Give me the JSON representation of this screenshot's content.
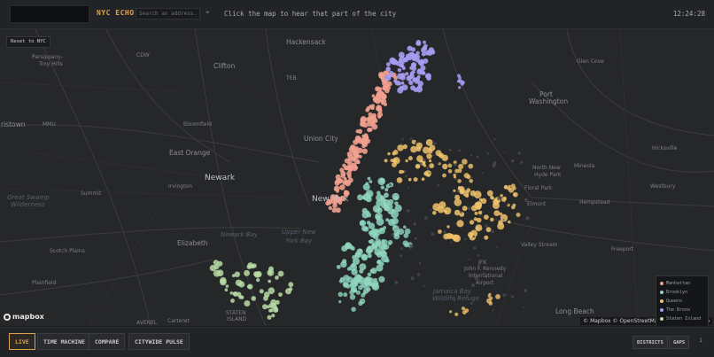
{
  "header": {
    "title": "NYC ECHO",
    "search_placeholder": "Search an address...",
    "search_icon": "arrow-right-icon",
    "search_symbol": "➔",
    "hint": "Click the map to hear that part of the city",
    "clock": "12:24:28"
  },
  "map": {
    "reset_label": "Reset to NYC",
    "places": [
      {
        "id": "hackensack",
        "name": "Hackensack",
        "size": "mid"
      },
      {
        "id": "cdw",
        "name": "CDW",
        "size": "small"
      },
      {
        "id": "parsippany",
        "name": "Parsippany-",
        "size": "small"
      },
      {
        "id": "troy-hills",
        "name": "Troy Hills",
        "size": "small"
      },
      {
        "id": "clifton",
        "name": "Clifton",
        "size": "mid"
      },
      {
        "id": "teb",
        "name": "TEB",
        "size": "small"
      },
      {
        "id": "mmu",
        "name": "MMU",
        "size": "small"
      },
      {
        "id": "bloomfield",
        "name": "Bloomfield",
        "size": "small"
      },
      {
        "id": "morristown",
        "name": "ristown",
        "size": "mid"
      },
      {
        "id": "union-city",
        "name": "Union City",
        "size": "mid"
      },
      {
        "id": "east-orange",
        "name": "East Orange",
        "size": "mid"
      },
      {
        "id": "summit",
        "name": "Summit",
        "size": "mid"
      },
      {
        "id": "irvington",
        "name": "Irvington",
        "size": "small"
      },
      {
        "id": "newark",
        "name": "Newark",
        "size": "big"
      },
      {
        "id": "great-swamp",
        "name": "Great Swamp",
        "size": "water"
      },
      {
        "id": "wilderness",
        "name": "Wilderness",
        "size": "water"
      },
      {
        "id": "new-york",
        "name": "New York",
        "size": "big"
      },
      {
        "id": "elizabeth",
        "name": "Elizabeth",
        "size": "mid"
      },
      {
        "id": "scotch-plains",
        "name": "Scotch Plains",
        "size": "small"
      },
      {
        "id": "plainfield",
        "name": "Plainfield",
        "size": "small"
      },
      {
        "id": "newark-bay",
        "name": "Newark Bay",
        "size": "water"
      },
      {
        "id": "upper-ny-bay",
        "name": "Upper New",
        "size": "water"
      },
      {
        "id": "york-bay",
        "name": "York Bay",
        "size": "water"
      },
      {
        "id": "staten",
        "name": "STATEN",
        "size": "small"
      },
      {
        "id": "island",
        "name": "ISLAND",
        "size": "small"
      },
      {
        "id": "carteret",
        "name": "Carteret",
        "size": "small"
      },
      {
        "id": "jamaica-bay",
        "name": "Jamaica Bay",
        "size": "water"
      },
      {
        "id": "wildlife-refuge",
        "name": "Wildlife Refuge",
        "size": "water"
      },
      {
        "id": "jfk",
        "name": "JFK",
        "size": "small"
      },
      {
        "id": "jfk-full",
        "name": "John F. Kennedy",
        "size": "small"
      },
      {
        "id": "jfk-intl",
        "name": "International",
        "size": "small"
      },
      {
        "id": "jfk-airport",
        "name": "Airport",
        "size": "small"
      },
      {
        "id": "glen-cove",
        "name": "Glen Cove",
        "size": "small"
      },
      {
        "id": "port",
        "name": "Port",
        "size": "mid"
      },
      {
        "id": "washington",
        "name": "Washington",
        "size": "mid"
      },
      {
        "id": "north-new",
        "name": "North New",
        "size": "small"
      },
      {
        "id": "hyde-park",
        "name": "Hyde Park",
        "size": "small"
      },
      {
        "id": "mineola",
        "name": "Mineola",
        "size": "small"
      },
      {
        "id": "floral-park",
        "name": "Floral Park",
        "size": "small"
      },
      {
        "id": "elmont",
        "name": "Elmont",
        "size": "small"
      },
      {
        "id": "hempstead",
        "name": "Hempstead",
        "size": "small"
      },
      {
        "id": "valley-stream",
        "name": "Valley Stream",
        "size": "small"
      },
      {
        "id": "freeport",
        "name": "Freeport",
        "size": "small"
      },
      {
        "id": "westbury",
        "name": "Westbury",
        "size": "small"
      },
      {
        "id": "hicksville",
        "name": "Hicksville",
        "size": "small"
      },
      {
        "id": "long-beach",
        "name": "Long Beach",
        "size": "mid"
      },
      {
        "id": "avenel",
        "name": "AVENEL",
        "size": "small"
      }
    ],
    "mapbox_label": "mapbox",
    "attribution": "© Mapbox © OpenStreetMap  Improve this map"
  },
  "legend": {
    "items": [
      {
        "label": "Manhattan",
        "color": "#f2a08e"
      },
      {
        "label": "Brooklyn",
        "color": "#8fd6bf"
      },
      {
        "label": "Queens",
        "color": "#f0c36b"
      },
      {
        "label": "The Bronx",
        "color": "#a79cf2"
      },
      {
        "label": "Staten Island",
        "color": "#b8dca4"
      }
    ]
  },
  "footer": {
    "modes": [
      {
        "label": "LIVE",
        "active": true
      },
      {
        "label": "TIME MACHINE",
        "active": false
      },
      {
        "label": "COMPARE",
        "active": false
      },
      {
        "label": "CITYWIDE PULSE",
        "active": false
      }
    ],
    "districts_label": "DISTRICTS",
    "gaps_label": "GAPS",
    "info_label": "i"
  }
}
